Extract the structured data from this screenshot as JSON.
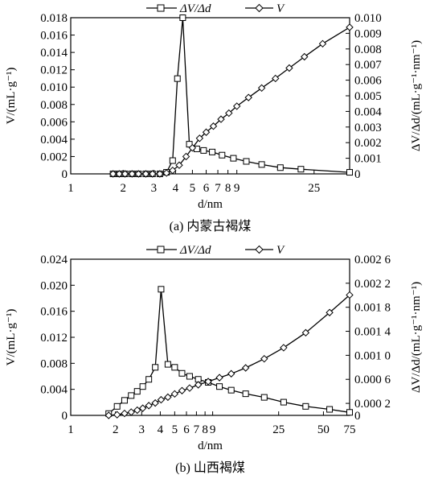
{
  "chart_data": [
    {
      "type": "line",
      "caption": "(a) 内蒙古褐煤",
      "xlabel": "d/nm",
      "x_scale": "log",
      "xlim": [
        1,
        40
      ],
      "x_ticks": [
        1,
        2,
        3,
        4,
        5,
        6,
        7,
        8,
        9,
        25
      ],
      "ylabel_left": "V/(mL·g⁻¹)",
      "ylabel_right": "ΔV/Δd/(mL·g⁻¹·nm⁻¹)",
      "ylim_left": [
        0,
        0.018
      ],
      "ylim_right": [
        0,
        0.01
      ],
      "yticks_left": [
        "0",
        "0.002",
        "0.004",
        "0.006",
        "0.008",
        "0.010",
        "0.012",
        "0.014",
        "0.016",
        "0.018"
      ],
      "yticks_right": [
        "0",
        "0.001",
        "0.002",
        "0.003",
        "0.004",
        "0.005",
        "0.006",
        "0.007",
        "0.008",
        "0.009",
        "0.010"
      ],
      "legend_position": "top-center",
      "series": [
        {
          "name": "ΔV/Δd",
          "marker": "square",
          "axis": "right",
          "x": [
            1.75,
            1.9,
            2.05,
            2.25,
            2.45,
            2.7,
            2.95,
            3.25,
            3.55,
            3.85,
            4.1,
            4.4,
            4.8,
            5.3,
            5.8,
            6.5,
            7.4,
            8.6,
            10.2,
            12.5,
            16,
            21,
            40
          ],
          "y": [
            0,
            0,
            0,
            0,
            0,
            0,
            0,
            0,
            0.0001,
            0.00085,
            0.0061,
            0.01,
            0.0019,
            0.0016,
            0.0015,
            0.0014,
            0.0012,
            0.001,
            0.0008,
            0.0006,
            0.0004,
            0.0003,
            0.0001
          ]
        },
        {
          "name": "V",
          "marker": "diamond",
          "axis": "left",
          "x": [
            1.75,
            1.9,
            2.05,
            2.25,
            2.45,
            2.7,
            2.95,
            3.25,
            3.55,
            3.85,
            4.2,
            4.6,
            5.0,
            5.5,
            6.0,
            6.6,
            7.3,
            8.1,
            9.0,
            10.5,
            12.5,
            15,
            18,
            22,
            28,
            40
          ],
          "y": [
            0,
            0,
            0,
            0,
            0,
            0,
            0,
            0,
            0.0001,
            0.0004,
            0.001,
            0.002,
            0.003,
            0.0041,
            0.0048,
            0.0055,
            0.0063,
            0.007,
            0.0078,
            0.0088,
            0.0099,
            0.011,
            0.0122,
            0.0135,
            0.015,
            0.0169
          ]
        }
      ]
    },
    {
      "type": "line",
      "caption": "(b) 山西褐煤",
      "xlabel": "d/nm",
      "x_scale": "log",
      "xlim": [
        1,
        75
      ],
      "x_ticks": [
        1,
        2,
        3,
        4,
        5,
        6,
        7,
        8,
        9,
        25,
        50,
        75
      ],
      "ylabel_left": "V/(mL·g⁻¹)",
      "ylabel_right": "ΔV/Δd/(mL·g⁻¹·nm⁻¹)",
      "ylim_left": [
        0,
        0.024
      ],
      "ylim_right": [
        0,
        0.0026
      ],
      "yticks_left": [
        "0",
        "0.004",
        "0.008",
        "0.012",
        "0.016",
        "0.020",
        "0.024"
      ],
      "yticks_right": [
        "0",
        "0.000 2",
        "0.000 6",
        "0.001 0",
        "0.001 4",
        "0.001 8",
        "0.002 2",
        "0.002 6"
      ],
      "legend_position": "top-center",
      "series": [
        {
          "name": "ΔV/Δd",
          "marker": "square",
          "axis": "right",
          "x": [
            1.8,
            2.05,
            2.3,
            2.55,
            2.8,
            3.05,
            3.35,
            3.7,
            4.05,
            4.5,
            5.0,
            5.6,
            6.3,
            7.2,
            8.4,
            10,
            12,
            15,
            20,
            27,
            38,
            55,
            75
          ],
          "y": [
            3e-05,
            0.00015,
            0.00025,
            0.00033,
            0.0004,
            0.00048,
            0.0006,
            0.0008,
            0.0021,
            0.00085,
            0.0008,
            0.0007,
            0.00065,
            0.0006,
            0.00055,
            0.00048,
            0.00042,
            0.00036,
            0.0003,
            0.00022,
            0.00015,
            0.0001,
            5e-05
          ]
        },
        {
          "name": "V",
          "marker": "diamond",
          "axis": "left",
          "x": [
            1.8,
            2.05,
            2.3,
            2.55,
            2.8,
            3.05,
            3.35,
            3.7,
            4.05,
            4.5,
            5.0,
            5.6,
            6.3,
            7.2,
            8.4,
            10,
            12,
            15,
            20,
            27,
            38,
            55,
            75
          ],
          "y": [
            0,
            0.0001,
            0.0003,
            0.0005,
            0.0008,
            0.0011,
            0.0015,
            0.0019,
            0.0024,
            0.0028,
            0.0033,
            0.0038,
            0.0042,
            0.0047,
            0.0052,
            0.0058,
            0.0064,
            0.0073,
            0.0087,
            0.0104,
            0.0127,
            0.0158,
            0.0185
          ]
        }
      ]
    }
  ]
}
